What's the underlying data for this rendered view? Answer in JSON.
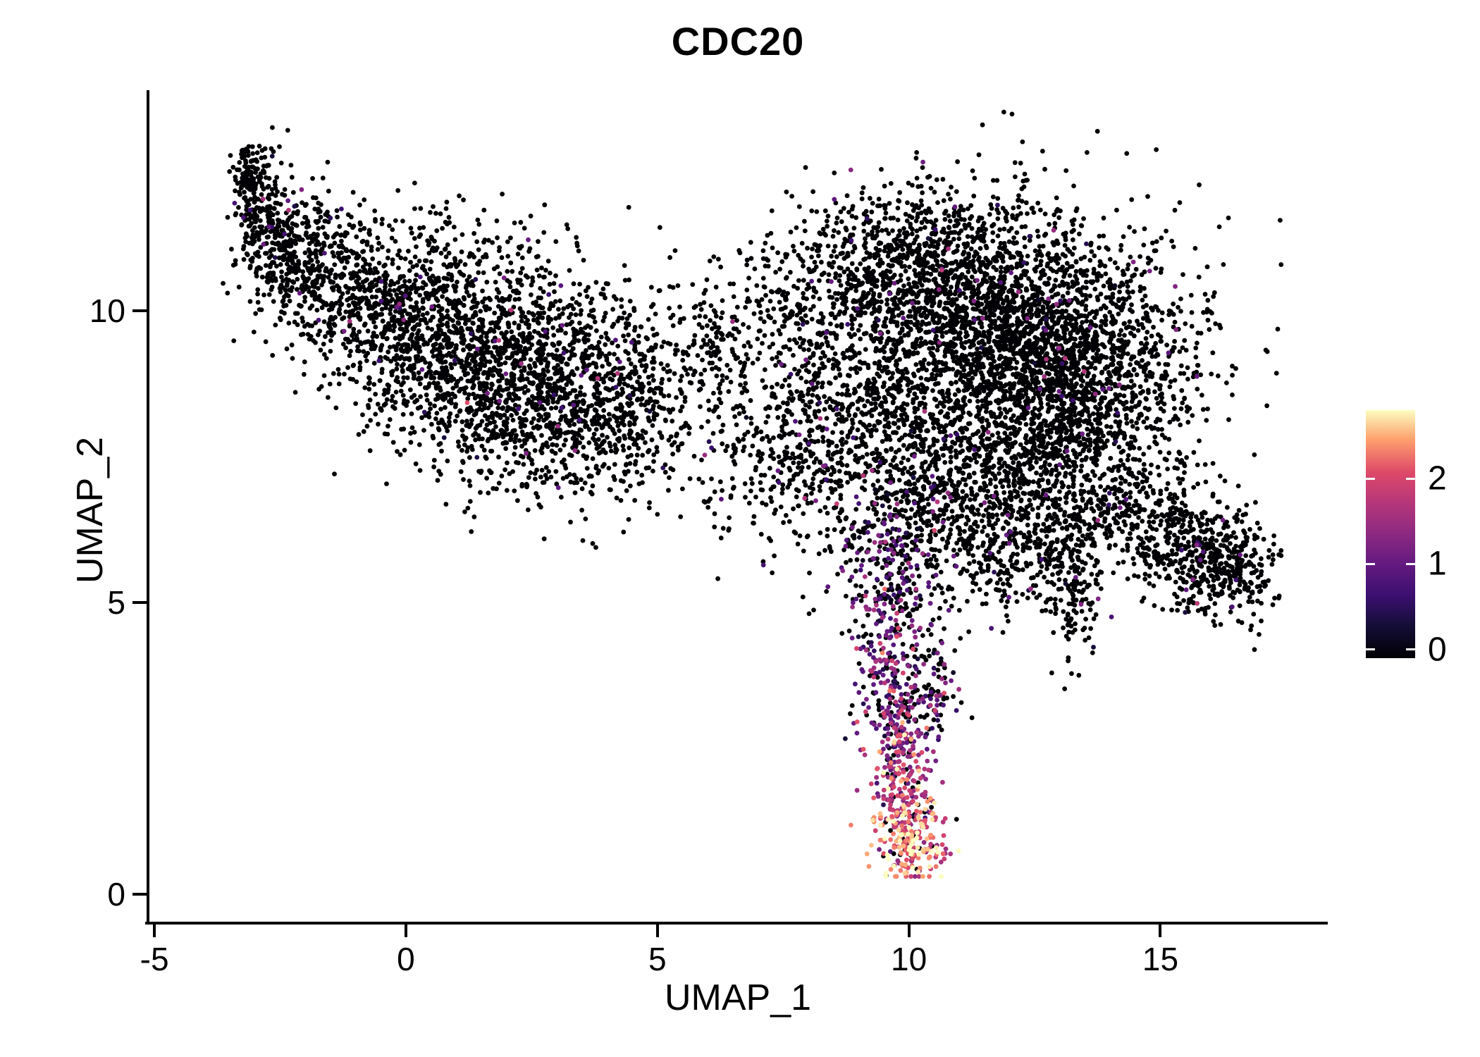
{
  "chart_data": {
    "type": "scatter",
    "title": "CDC20",
    "xlabel": "UMAP_1",
    "ylabel": "UMAP_2",
    "xlim": [
      -5.1,
      18.3
    ],
    "ylim": [
      -0.5,
      13.75
    ],
    "x_ticks": [
      -5,
      0,
      5,
      10,
      15
    ],
    "y_ticks": [
      0,
      5,
      10
    ],
    "grid": false,
    "legend_position": "right",
    "colorbar": {
      "ticks": [
        0,
        1,
        2
      ],
      "vmin": -0.1,
      "vmax": 2.8
    },
    "expr_max": 2.6,
    "point_radius": 3.4,
    "seed": 11,
    "colormap": [
      {
        "t": 0.0,
        "color": "#000004"
      },
      {
        "t": 0.13,
        "color": "#140e36"
      },
      {
        "t": 0.25,
        "color": "#3b0f70"
      },
      {
        "t": 0.38,
        "color": "#641a80"
      },
      {
        "t": 0.5,
        "color": "#8c2981"
      },
      {
        "t": 0.63,
        "color": "#b73779"
      },
      {
        "t": 0.75,
        "color": "#de4968"
      },
      {
        "t": 0.88,
        "color": "#fe9f6d"
      },
      {
        "t": 1.0,
        "color": "#fcfdbf"
      }
    ],
    "clusters": [
      {
        "cx": -3.15,
        "cy": 12.35,
        "sx": 0.14,
        "sy": 0.28,
        "n": 90,
        "zero_frac": 0.97,
        "expr_mean": 0.9,
        "expr_sd": 0.35
      },
      {
        "cx": -2.85,
        "cy": 11.7,
        "sx": 0.28,
        "sy": 0.5,
        "n": 170,
        "zero_frac": 0.97,
        "expr_mean": 0.9,
        "expr_sd": 0.35
      },
      {
        "cx": -2.3,
        "cy": 11.0,
        "sx": 0.5,
        "sy": 0.55,
        "n": 230,
        "zero_frac": 0.97,
        "expr_mean": 0.9,
        "expr_sd": 0.35
      },
      {
        "cx": -1.6,
        "cy": 10.6,
        "sx": 0.7,
        "sy": 0.55,
        "n": 260,
        "zero_frac": 0.975,
        "expr_mean": 0.9,
        "expr_sd": 0.35
      },
      {
        "cx": -0.4,
        "cy": 10.1,
        "sx": 0.9,
        "sy": 0.65,
        "n": 430,
        "zero_frac": 0.975,
        "expr_mean": 0.9,
        "expr_sd": 0.35
      },
      {
        "cx": 0.9,
        "cy": 9.4,
        "sx": 1.05,
        "sy": 0.85,
        "n": 760,
        "zero_frac": 0.975,
        "expr_mean": 0.9,
        "expr_sd": 0.35
      },
      {
        "cx": 2.3,
        "cy": 8.8,
        "sx": 1.1,
        "sy": 0.9,
        "n": 860,
        "zero_frac": 0.975,
        "expr_mean": 0.9,
        "expr_sd": 0.35
      },
      {
        "cx": 3.8,
        "cy": 8.45,
        "sx": 0.95,
        "sy": 0.85,
        "n": 530,
        "zero_frac": 0.975,
        "expr_mean": 0.9,
        "expr_sd": 0.35
      },
      {
        "cx": 5.3,
        "cy": 8.8,
        "sx": 0.8,
        "sy": 0.9,
        "n": 170,
        "zero_frac": 0.97,
        "expr_mean": 0.9,
        "expr_sd": 0.35
      },
      {
        "cx": 1.3,
        "cy": 11.1,
        "sx": 1.7,
        "sy": 0.5,
        "n": 90,
        "zero_frac": 0.97,
        "expr_mean": 0.9,
        "expr_sd": 0.35
      },
      {
        "cx": 6.9,
        "cy": 8.3,
        "sx": 0.9,
        "sy": 1.1,
        "n": 210,
        "zero_frac": 0.965,
        "expr_mean": 0.9,
        "expr_sd": 0.35
      },
      {
        "cx": 7.9,
        "cy": 7.6,
        "sx": 0.7,
        "sy": 1.0,
        "n": 220,
        "zero_frac": 0.96,
        "expr_mean": 0.9,
        "expr_sd": 0.35
      },
      {
        "cx": 6.6,
        "cy": 9.9,
        "sx": 0.8,
        "sy": 0.5,
        "n": 80,
        "zero_frac": 0.97,
        "expr_mean": 0.9,
        "expr_sd": 0.35
      },
      {
        "cx": 11.7,
        "cy": 9.5,
        "sx": 1.7,
        "sy": 1.15,
        "n": 2400,
        "zero_frac": 0.985,
        "expr_mean": 0.9,
        "expr_sd": 0.35
      },
      {
        "cx": 13.4,
        "cy": 8.9,
        "sx": 1.2,
        "sy": 1.0,
        "n": 1100,
        "zero_frac": 0.985,
        "expr_mean": 0.9,
        "expr_sd": 0.35
      },
      {
        "cx": 10.4,
        "cy": 10.9,
        "sx": 1.1,
        "sy": 0.65,
        "n": 430,
        "zero_frac": 0.98,
        "expr_mean": 0.9,
        "expr_sd": 0.35
      },
      {
        "cx": 9.2,
        "cy": 10.9,
        "sx": 1.1,
        "sy": 0.55,
        "n": 170,
        "zero_frac": 0.96,
        "expr_mean": 0.9,
        "expr_sd": 0.35
      },
      {
        "cx": 8.4,
        "cy": 10.3,
        "sx": 0.8,
        "sy": 0.6,
        "n": 120,
        "zero_frac": 0.96,
        "expr_mean": 0.9,
        "expr_sd": 0.35
      },
      {
        "cx": 9.1,
        "cy": 8.1,
        "sx": 0.9,
        "sy": 1.1,
        "n": 430,
        "zero_frac": 0.96,
        "expr_mean": 0.9,
        "expr_sd": 0.35
      },
      {
        "cx": 10.4,
        "cy": 6.8,
        "sx": 0.75,
        "sy": 0.85,
        "n": 300,
        "zero_frac": 0.95,
        "expr_mean": 0.9,
        "expr_sd": 0.35
      },
      {
        "cx": 11.6,
        "cy": 6.3,
        "sx": 0.95,
        "sy": 0.7,
        "n": 330,
        "zero_frac": 0.97,
        "expr_mean": 0.9,
        "expr_sd": 0.35
      },
      {
        "cx": 12.6,
        "cy": 7.2,
        "sx": 0.95,
        "sy": 0.8,
        "n": 400,
        "zero_frac": 0.98,
        "expr_mean": 0.9,
        "expr_sd": 0.35
      },
      {
        "cx": 12.2,
        "cy": 5.6,
        "sx": 0.6,
        "sy": 0.5,
        "n": 90,
        "zero_frac": 0.97,
        "expr_mean": 0.9,
        "expr_sd": 0.35
      },
      {
        "cx": 14.7,
        "cy": 6.5,
        "sx": 0.65,
        "sy": 0.5,
        "n": 240,
        "zero_frac": 0.985,
        "expr_mean": 0.9,
        "expr_sd": 0.35
      },
      {
        "cx": 15.7,
        "cy": 5.9,
        "sx": 0.6,
        "sy": 0.45,
        "n": 280,
        "zero_frac": 0.985,
        "expr_mean": 0.9,
        "expr_sd": 0.35
      },
      {
        "cx": 16.4,
        "cy": 5.5,
        "sx": 0.45,
        "sy": 0.4,
        "n": 220,
        "zero_frac": 0.985,
        "expr_mean": 0.9,
        "expr_sd": 0.35
      },
      {
        "cx": 13.3,
        "cy": 5.4,
        "sx": 0.3,
        "sy": 0.75,
        "n": 160,
        "zero_frac": 0.955,
        "expr_mean": 0.9,
        "expr_sd": 0.35
      },
      {
        "cx": 9.55,
        "cy": 5.9,
        "sx": 0.5,
        "sy": 0.75,
        "n": 200,
        "zero_frac": 0.55,
        "expr_mean": 0.8,
        "expr_sd": 0.5
      },
      {
        "cx": 9.65,
        "cy": 4.4,
        "sx": 0.4,
        "sy": 0.65,
        "n": 190,
        "zero_frac": 0.35,
        "expr_mean": 1.0,
        "expr_sd": 0.5
      },
      {
        "cx": 9.75,
        "cy": 3.0,
        "sx": 0.33,
        "sy": 0.6,
        "n": 180,
        "zero_frac": 0.25,
        "expr_mean": 1.2,
        "expr_sd": 0.5
      },
      {
        "cx": 9.9,
        "cy": 1.8,
        "sx": 0.3,
        "sy": 0.5,
        "n": 170,
        "zero_frac": 0.15,
        "expr_mean": 1.6,
        "expr_sd": 0.5
      },
      {
        "cx": 10.0,
        "cy": 0.95,
        "sx": 0.36,
        "sy": 0.38,
        "n": 230,
        "zero_frac": 0.08,
        "expr_mean": 2.1,
        "expr_sd": 0.4
      },
      {
        "cx": 10.55,
        "cy": 3.4,
        "sx": 0.25,
        "sy": 0.45,
        "n": 70,
        "zero_frac": 0.5,
        "expr_mean": 0.9,
        "expr_sd": 0.5
      }
    ]
  }
}
